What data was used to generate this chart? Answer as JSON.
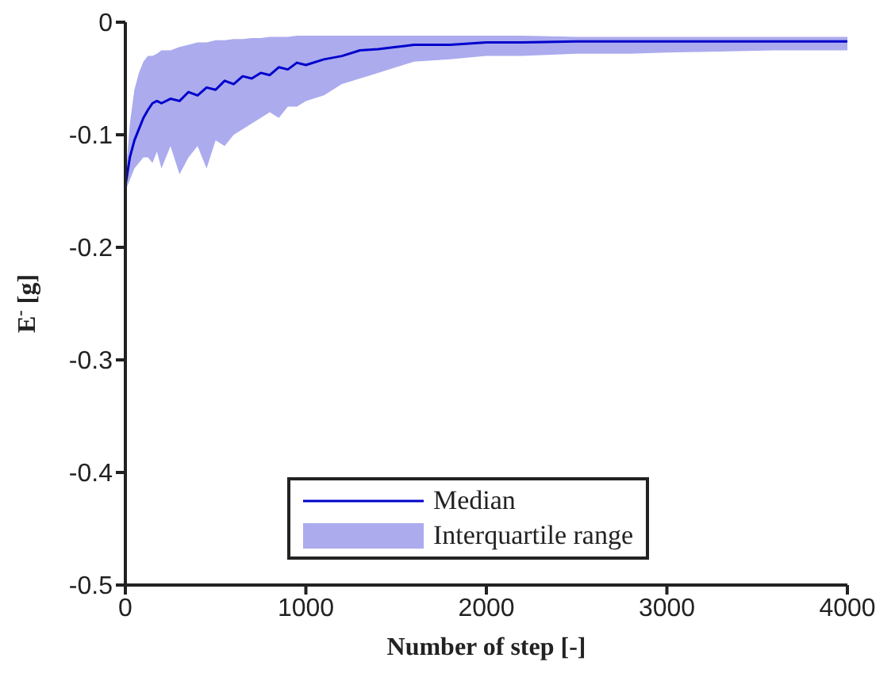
{
  "chart_data": {
    "type": "line",
    "xlabel": "Number of step [-]",
    "ylabel": "E$^{-}$ [g]",
    "annotations": [
      "Interquartile range"
    ],
    "x": [
      0,
      25,
      50,
      75,
      100,
      125,
      150,
      175,
      200,
      250,
      300,
      350,
      400,
      450,
      500,
      550,
      600,
      650,
      700,
      750,
      800,
      850,
      900,
      950,
      1000,
      1100,
      1200,
      1300,
      1400,
      1500,
      1600,
      1800,
      2000,
      2200,
      2500,
      2800,
      3000,
      3300,
      3600,
      4000
    ],
    "series": [
      {
        "name": "Median",
        "color": "#0000cc",
        "values": [
          -0.145,
          -0.12,
          -0.105,
          -0.095,
          -0.085,
          -0.078,
          -0.072,
          -0.07,
          -0.072,
          -0.068,
          -0.07,
          -0.062,
          -0.065,
          -0.058,
          -0.06,
          -0.052,
          -0.055,
          -0.048,
          -0.05,
          -0.045,
          -0.047,
          -0.04,
          -0.042,
          -0.036,
          -0.038,
          -0.033,
          -0.03,
          -0.025,
          -0.024,
          -0.022,
          -0.02,
          -0.02,
          -0.018,
          -0.018,
          -0.017,
          -0.017,
          -0.017,
          -0.017,
          -0.017,
          -0.017
        ],
        "lower": [
          -0.15,
          -0.14,
          -0.13,
          -0.125,
          -0.12,
          -0.12,
          -0.125,
          -0.115,
          -0.13,
          -0.11,
          -0.135,
          -0.12,
          -0.11,
          -0.13,
          -0.105,
          -0.11,
          -0.1,
          -0.095,
          -0.09,
          -0.085,
          -0.08,
          -0.085,
          -0.075,
          -0.075,
          -0.07,
          -0.065,
          -0.055,
          -0.05,
          -0.045,
          -0.04,
          -0.035,
          -0.033,
          -0.03,
          -0.03,
          -0.028,
          -0.028,
          -0.027,
          -0.026,
          -0.025,
          -0.025
        ],
        "upper": [
          -0.14,
          -0.09,
          -0.06,
          -0.045,
          -0.035,
          -0.03,
          -0.03,
          -0.028,
          -0.025,
          -0.025,
          -0.022,
          -0.02,
          -0.018,
          -0.018,
          -0.016,
          -0.016,
          -0.015,
          -0.015,
          -0.014,
          -0.014,
          -0.013,
          -0.013,
          -0.013,
          -0.012,
          -0.012,
          -0.012,
          -0.012,
          -0.012,
          -0.012,
          -0.012,
          -0.012,
          -0.012,
          -0.012,
          -0.012,
          -0.013,
          -0.013,
          -0.013,
          -0.013,
          -0.013,
          -0.013
        ]
      }
    ],
    "xlim": [
      0,
      4000
    ],
    "xticks": [
      0,
      1000,
      2000,
      3000,
      4000
    ],
    "ylim": [
      -0.5,
      0
    ],
    "yticks": [
      -0.5,
      -0.4,
      -0.3,
      -0.2,
      -0.1,
      0
    ],
    "legend": "bottom"
  }
}
